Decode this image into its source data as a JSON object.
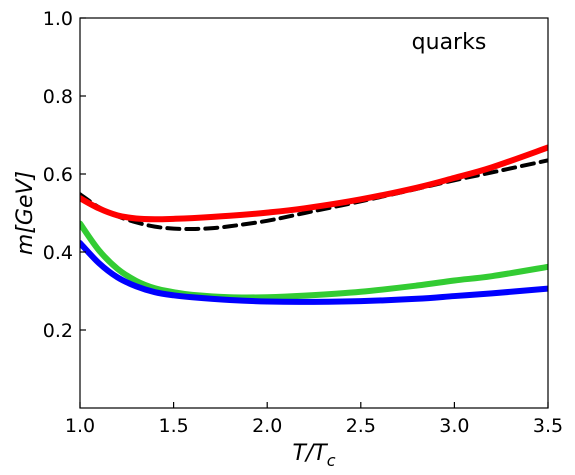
{
  "chart_data": {
    "type": "line",
    "annotation": "quarks",
    "xlabel": "T/T",
    "xlabel_sub": "c",
    "ylabel": "m[GeV]",
    "xlim": [
      1.0,
      3.5
    ],
    "ylim": [
      0.0,
      1.0
    ],
    "xticks": [
      1.0,
      1.5,
      2.0,
      2.5,
      3.0,
      3.5
    ],
    "xtick_labels": [
      "1.0",
      "1.5",
      "2.0",
      "2.5",
      "3.0",
      "3.5"
    ],
    "yticks": [
      0.2,
      0.4,
      0.6,
      0.8,
      1.0
    ],
    "ytick_labels": [
      "0.2",
      "0.4",
      "0.6",
      "0.8",
      "1.0"
    ],
    "grid": false,
    "legend": "none",
    "series": [
      {
        "color": "#000000",
        "style": "dashed",
        "x": [
          1.0,
          1.1,
          1.2,
          1.3,
          1.4,
          1.5,
          1.6,
          1.7,
          1.8,
          2.0,
          2.2,
          2.5,
          2.8,
          3.0,
          3.2,
          3.5
        ],
        "y": [
          0.548,
          0.515,
          0.492,
          0.476,
          0.465,
          0.46,
          0.459,
          0.461,
          0.466,
          0.48,
          0.5,
          0.53,
          0.562,
          0.584,
          0.604,
          0.635
        ]
      },
      {
        "color": "#ff0000",
        "style": "solid",
        "x": [
          1.0,
          1.1,
          1.2,
          1.3,
          1.4,
          1.5,
          1.6,
          1.8,
          2.0,
          2.2,
          2.5,
          2.8,
          3.0,
          3.2,
          3.5
        ],
        "y": [
          0.538,
          0.512,
          0.494,
          0.486,
          0.484,
          0.485,
          0.487,
          0.493,
          0.501,
          0.512,
          0.535,
          0.565,
          0.59,
          0.617,
          0.668
        ]
      },
      {
        "color": "#33cc33",
        "style": "solid",
        "x": [
          1.0,
          1.1,
          1.2,
          1.3,
          1.4,
          1.5,
          1.6,
          1.8,
          2.0,
          2.2,
          2.5,
          2.8,
          3.0,
          3.2,
          3.5
        ],
        "y": [
          0.473,
          0.405,
          0.357,
          0.326,
          0.307,
          0.297,
          0.29,
          0.284,
          0.284,
          0.288,
          0.298,
          0.314,
          0.327,
          0.338,
          0.362
        ]
      },
      {
        "color": "#0000ff",
        "style": "solid",
        "x": [
          1.0,
          1.1,
          1.2,
          1.3,
          1.4,
          1.5,
          1.6,
          1.8,
          2.0,
          2.2,
          2.5,
          2.8,
          3.0,
          3.2,
          3.5
        ],
        "y": [
          0.423,
          0.372,
          0.335,
          0.312,
          0.297,
          0.289,
          0.284,
          0.277,
          0.273,
          0.272,
          0.274,
          0.28,
          0.287,
          0.294,
          0.306
        ]
      }
    ]
  }
}
